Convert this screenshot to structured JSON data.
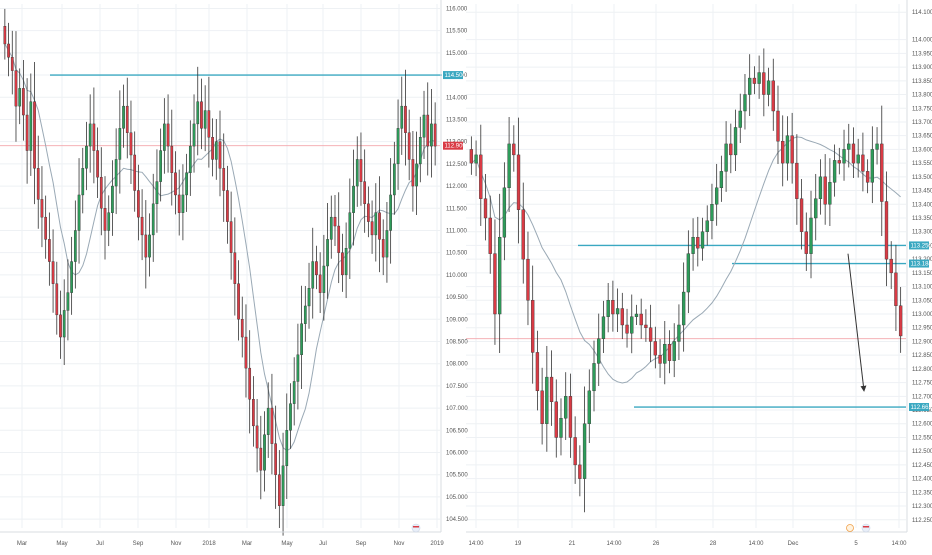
{
  "colors": {
    "bull": "#2e9c5a",
    "bear": "#d93b45",
    "wick": "#333333",
    "ma": "#9aa9b5",
    "level": "#3aa8c1",
    "price_line": "#f3a6ab",
    "grid": "#eef1f4",
    "axis_text": "#555555"
  },
  "chart_data": [
    {
      "type": "candlestick",
      "panel": "left",
      "timeframe_note": "weekly candles",
      "x_labels": [
        "Mar",
        "May",
        "Jul",
        "Sep",
        "Nov",
        "2018",
        "Mar",
        "May",
        "Jul",
        "Sep",
        "Nov",
        "2019"
      ],
      "y_ticks": [
        "116.000",
        "115.500",
        "115.000",
        "114.500",
        "114.000",
        "113.500",
        "113.000",
        "112.500",
        "112.000",
        "111.500",
        "111.000",
        "110.500",
        "110.000",
        "109.500",
        "109.000",
        "108.500",
        "108.000",
        "107.500",
        "107.000",
        "106.500",
        "106.000",
        "105.500",
        "105.000",
        "104.500"
      ],
      "ylim": [
        104.3,
        116.1
      ],
      "levels": [
        {
          "name": "resistance",
          "value": 114.5,
          "label": "114.500"
        }
      ],
      "last_price": {
        "value": 112.909,
        "label": "112.909"
      },
      "moving_average": "simple",
      "closes": [
        115.2,
        114.9,
        114.6,
        113.8,
        114.2,
        113.6,
        112.8,
        113.9,
        112.4,
        111.7,
        111.3,
        110.8,
        110.3,
        109.8,
        109.1,
        108.6,
        109.2,
        109.6,
        110.3,
        111.0,
        111.8,
        112.4,
        112.9,
        113.4,
        112.8,
        112.2,
        111.5,
        111.0,
        111.4,
        112.0,
        112.6,
        113.3,
        113.8,
        113.2,
        112.7,
        111.9,
        111.3,
        110.9,
        110.4,
        110.9,
        111.6,
        112.1,
        112.8,
        113.4,
        112.9,
        112.3,
        111.8,
        111.4,
        111.8,
        112.3,
        112.9,
        113.4,
        113.9,
        113.3,
        113.7,
        113.1,
        112.6,
        113.0,
        112.4,
        111.9,
        111.2,
        110.5,
        109.8,
        109.0,
        108.6,
        107.9,
        107.2,
        106.6,
        106.1,
        105.6,
        106.4,
        107.0,
        106.2,
        105.5,
        104.8,
        105.7,
        106.5,
        107.1,
        107.6,
        108.2,
        108.9,
        109.3,
        109.7,
        110.3,
        110.0,
        109.6,
        110.2,
        110.8,
        111.3,
        111.1,
        110.5,
        110.0,
        110.6,
        111.4,
        112.0,
        112.6,
        112.1,
        111.6,
        111.2,
        110.9,
        111.4,
        110.8,
        110.4,
        111.0,
        111.8,
        112.5,
        113.3,
        113.8,
        113.2,
        112.6,
        112.0,
        112.5,
        113.1,
        113.6,
        112.9,
        113.4,
        112.9
      ]
    },
    {
      "type": "candlestick",
      "panel": "right",
      "timeframe_note": "intraday candles",
      "x_labels": [
        "14:00",
        "19",
        "21",
        "14:00",
        "26",
        "28",
        "14:00",
        "Dec",
        "5",
        "14:00"
      ],
      "y_ticks": [
        "114.100",
        "114.000",
        "113.950",
        "113.900",
        "113.850",
        "113.800",
        "113.750",
        "113.700",
        "113.650",
        "113.600",
        "113.550",
        "113.500",
        "113.450",
        "113.400",
        "113.350",
        "113.300",
        "113.250",
        "113.200",
        "113.150",
        "113.100",
        "113.050",
        "113.000",
        "112.950",
        "112.900",
        "112.850",
        "112.800",
        "112.750",
        "112.700",
        "112.650",
        "112.600",
        "112.550",
        "112.500",
        "112.450",
        "112.400",
        "112.350",
        "112.300",
        "112.250"
      ],
      "ylim": [
        112.22,
        114.13
      ],
      "levels": [
        {
          "name": "upper-support",
          "value": 113.25,
          "label": "113.250"
        },
        {
          "name": "lower-support",
          "value": 113.184,
          "label": "113.184"
        },
        {
          "name": "target-level",
          "value": 112.661,
          "label": "112.661"
        }
      ],
      "last_price": {
        "value": 112.91
      },
      "moving_average": "simple",
      "arrow": {
        "from": 113.22,
        "to": 112.72
      },
      "closes": [
        113.55,
        113.58,
        113.42,
        113.35,
        113.22,
        113.0,
        113.28,
        113.46,
        113.62,
        113.58,
        113.38,
        113.2,
        113.05,
        112.86,
        112.72,
        112.6,
        112.77,
        112.68,
        112.55,
        112.62,
        112.7,
        112.55,
        112.45,
        112.4,
        112.6,
        112.72,
        112.82,
        112.91,
        112.99,
        113.05,
        113.0,
        113.02,
        112.96,
        112.93,
        112.99,
        113.0,
        112.96,
        112.95,
        112.9,
        112.85,
        112.82,
        112.89,
        112.83,
        112.9,
        112.96,
        113.08,
        113.22,
        113.28,
        113.24,
        113.3,
        113.34,
        113.4,
        113.46,
        113.52,
        113.62,
        113.58,
        113.68,
        113.74,
        113.8,
        113.86,
        113.84,
        113.88,
        113.8,
        113.85,
        113.74,
        113.63,
        113.55,
        113.65,
        113.55,
        113.42,
        113.3,
        113.22,
        113.35,
        113.42,
        113.5,
        113.4,
        113.48,
        113.56,
        113.55,
        113.6,
        113.62,
        113.55,
        113.58,
        113.52,
        113.48,
        113.6,
        113.62,
        113.41,
        113.2,
        113.15,
        113.03,
        112.92
      ]
    }
  ]
}
